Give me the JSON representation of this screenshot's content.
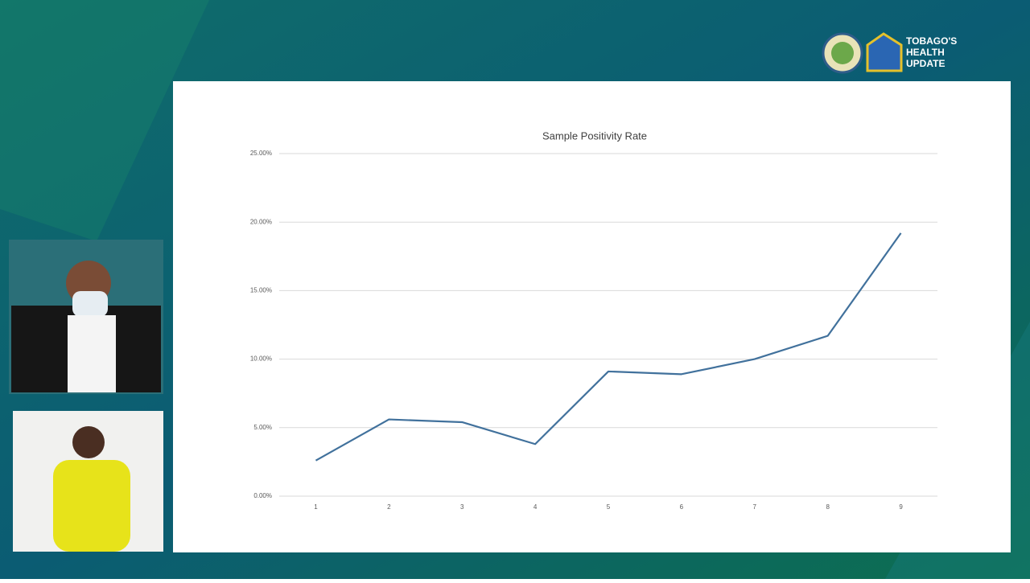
{
  "header": {
    "title_lines": [
      "TOBAGO'S",
      "HEALTH",
      "UPDATE"
    ]
  },
  "chart_data": {
    "type": "line",
    "title": "Sample Positivity Rate",
    "categories": [
      "1",
      "2",
      "3",
      "4",
      "5",
      "6",
      "7",
      "8",
      "9"
    ],
    "series": [
      {
        "color": "#41719c",
        "values": [
          2.6,
          5.6,
          5.4,
          3.8,
          9.1,
          8.9,
          10.0,
          11.7,
          19.2
        ]
      }
    ],
    "ylim": [
      0,
      25
    ],
    "yticks": [
      {
        "value": 0,
        "label": "0.00%"
      },
      {
        "value": 5,
        "label": "5.00%"
      },
      {
        "value": 10,
        "label": "10.00%"
      },
      {
        "value": 15,
        "label": "15.00%"
      },
      {
        "value": 20,
        "label": "20.00%"
      },
      {
        "value": 25,
        "label": "25.00%"
      }
    ],
    "grid": true
  }
}
